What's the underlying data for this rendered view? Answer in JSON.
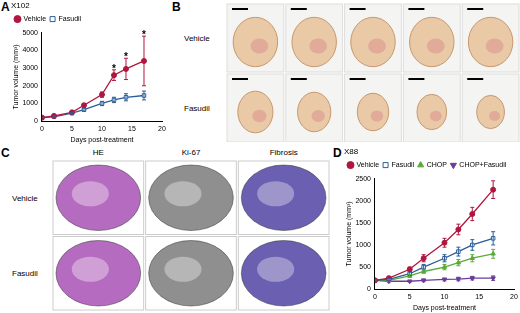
{
  "chart_data": [
    {
      "panel": "A",
      "type": "line",
      "title": "X102",
      "x_label": "Days post-treatment",
      "y_label": "Tumor volume (mm³)",
      "x": [
        0,
        2,
        5,
        7,
        10,
        12,
        14,
        17
      ],
      "series": [
        {
          "name": "Vehicle",
          "color": "#b0173f",
          "marker": "circle",
          "values": [
            200,
            300,
            500,
            900,
            1500,
            2600,
            2950,
            3400
          ],
          "errors": [
            20,
            40,
            60,
            100,
            150,
            300,
            600,
            1400
          ]
        },
        {
          "name": "Fasudil",
          "color": "#2b5d99",
          "marker": "open_square",
          "values": [
            200,
            250,
            450,
            650,
            1000,
            1200,
            1350,
            1450
          ],
          "errors": [
            20,
            30,
            50,
            80,
            120,
            150,
            200,
            250
          ]
        }
      ],
      "xlim": [
        0,
        20
      ],
      "xticks": [
        0,
        5,
        10,
        15,
        20
      ],
      "ylim": [
        0,
        5000
      ],
      "yticks": [
        0,
        1000,
        2000,
        3000,
        4000,
        5000
      ],
      "grid": false,
      "legend": "top left",
      "annotations": [
        {
          "text": "*",
          "x": 12,
          "y": 2900
        },
        {
          "text": "*",
          "x": 14,
          "y": 3550
        },
        {
          "text": "*",
          "x": 17,
          "y": 4800
        }
      ]
    },
    {
      "panel": "D",
      "type": "line",
      "title": "X88",
      "x_label": "Days post-treatment",
      "y_label": "Tumor volume (mm³)",
      "x": [
        0,
        2,
        5,
        7,
        10,
        12,
        14,
        17
      ],
      "series": [
        {
          "name": "Vehicle",
          "color": "#b0173f",
          "marker": "circle",
          "values": [
            200,
            250,
            450,
            700,
            1050,
            1350,
            1700,
            2250
          ],
          "errors": [
            20,
            30,
            50,
            80,
            100,
            120,
            150,
            200
          ]
        },
        {
          "name": "Fasudil",
          "color": "#2b5d99",
          "marker": "open_square",
          "values": [
            200,
            220,
            350,
            500,
            700,
            850,
            1000,
            1150
          ],
          "errors": [
            20,
            20,
            40,
            60,
            80,
            100,
            120,
            150
          ]
        },
        {
          "name": "CHOP",
          "color": "#5aaa3a",
          "marker": "triangle",
          "values": [
            200,
            200,
            300,
            400,
            500,
            600,
            700,
            800
          ],
          "errors": [
            20,
            20,
            30,
            40,
            60,
            70,
            80,
            100
          ]
        },
        {
          "name": "CHOP+Fasudil",
          "color": "#6a3d9a",
          "marker": "triangle_down",
          "values": [
            200,
            180,
            180,
            200,
            220,
            230,
            250,
            250
          ],
          "errors": [
            20,
            20,
            20,
            30,
            30,
            40,
            40,
            50
          ]
        }
      ],
      "xlim": [
        0,
        20
      ],
      "xticks": [
        0,
        5,
        10,
        15,
        20
      ],
      "ylim": [
        0,
        2500
      ],
      "yticks": [
        0,
        500,
        1000,
        1500,
        2000,
        2500
      ],
      "grid": false,
      "legend": "top left"
    }
  ],
  "images": [
    {
      "panel": "B",
      "rows": [
        "Vehicle",
        "Fasudil"
      ]
    },
    {
      "panel": "C",
      "rows": [
        "Vehicle",
        "Fasudil"
      ],
      "columns": [
        "HE",
        "Ki-67",
        "Fibrosis"
      ]
    }
  ]
}
